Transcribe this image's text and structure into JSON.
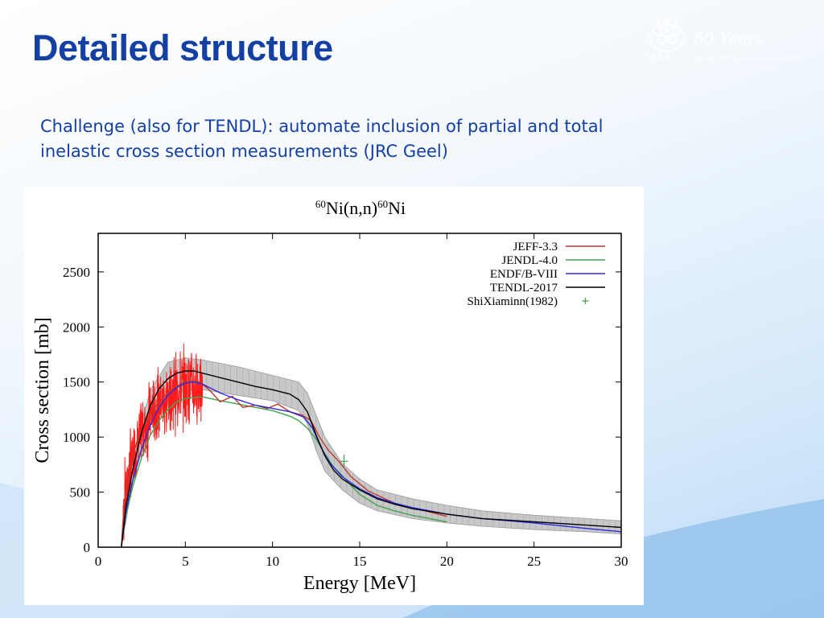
{
  "slide": {
    "title": "Detailed structure",
    "body": "Challenge (also for TENDL): automate inclusion of partial and total inelastic cross section measurements (JRC Geel)"
  },
  "logo": {
    "org": "IAEA",
    "years": "60 Years",
    "tagline": "Atoms for Peace and Development",
    "icon": "iaea-emblem-icon"
  },
  "colors": {
    "title": "#1540a3",
    "jeff": "#c0392b",
    "jendl": "#3fa34d",
    "endf": "#2a2ae0",
    "tendl": "#000000",
    "exfor": "#3fa34d",
    "band": "#b0b0b0"
  },
  "chart_data": {
    "type": "line",
    "title_parts": {
      "pre_sup": "60",
      "main": "Ni(n,n)",
      "mid_sup": "60",
      "post": "Ni"
    },
    "xlabel": "Energy [MeV]",
    "ylabel": "Cross section [mb]",
    "xlim": [
      0,
      30
    ],
    "ylim": [
      0,
      2850
    ],
    "xticks": [
      0,
      5,
      10,
      15,
      20,
      25,
      30
    ],
    "yticks": [
      0,
      500,
      1000,
      1500,
      2000,
      2500
    ],
    "grid": false,
    "legend_position": "top-right",
    "series": [
      {
        "name": "JEFF-3.3",
        "color": "#c0392b",
        "x": [
          1.33,
          1.5,
          1.8,
          2.2,
          2.7,
          3.2,
          3.8,
          4.3,
          4.8,
          5.3,
          5.8,
          6.3,
          7.0,
          7.7,
          8.3,
          9.0,
          9.7,
          10.3,
          11.0,
          11.7,
          12.2,
          12.7,
          13.2,
          13.8,
          14.5,
          15.5,
          17.0,
          18.5,
          20.0
        ],
        "y": [
          0,
          420,
          720,
          950,
          1130,
          1260,
          1370,
          1440,
          1490,
          1510,
          1500,
          1440,
          1320,
          1370,
          1270,
          1290,
          1260,
          1300,
          1230,
          1200,
          1150,
          1000,
          880,
          780,
          640,
          510,
          400,
          340,
          280
        ]
      },
      {
        "name": "JENDL-4.0",
        "color": "#3fa34d",
        "x": [
          1.33,
          1.6,
          2.0,
          2.5,
          3.0,
          3.5,
          4.0,
          4.5,
          5.0,
          5.5,
          6.0,
          7.0,
          8.0,
          9.0,
          10.0,
          11.0,
          11.5,
          12.0,
          12.5,
          13.0,
          13.5,
          14.0,
          14.5,
          15.0,
          16.0,
          17.0,
          18.0,
          19.0,
          20.0
        ],
        "y": [
          0,
          300,
          560,
          820,
          1020,
          1150,
          1250,
          1320,
          1350,
          1360,
          1365,
          1330,
          1300,
          1270,
          1240,
          1190,
          1150,
          1080,
          980,
          850,
          730,
          650,
          560,
          480,
          380,
          330,
          290,
          260,
          230
        ]
      },
      {
        "name": "ENDF/B-VIII",
        "color": "#2a2ae0",
        "x": [
          1.33,
          1.6,
          2.0,
          2.5,
          3.0,
          3.5,
          4.0,
          4.5,
          5.0,
          5.5,
          6.0,
          7.0,
          8.0,
          9.0,
          10.0,
          11.0,
          11.8,
          12.3,
          12.8,
          13.3,
          14.0,
          15.0,
          16.0,
          17.0,
          18.0,
          19.0,
          20.0,
          22.0,
          25.0,
          28.0,
          30.0
        ],
        "y": [
          0,
          330,
          620,
          900,
          1110,
          1270,
          1380,
          1450,
          1490,
          1500,
          1480,
          1400,
          1340,
          1290,
          1260,
          1230,
          1180,
          1080,
          900,
          760,
          640,
          530,
          450,
          400,
          360,
          330,
          300,
          260,
          220,
          170,
          140
        ]
      },
      {
        "name": "TENDL-2017",
        "color": "#000000",
        "x": [
          1.33,
          1.6,
          2.0,
          2.5,
          3.0,
          3.5,
          4.0,
          4.5,
          5.0,
          5.5,
          6.0,
          7.0,
          8.0,
          9.0,
          10.0,
          11.0,
          11.5,
          12.0,
          12.5,
          13.0,
          13.5,
          14.0,
          15.0,
          16.0,
          17.0,
          18.0,
          20.0,
          22.0,
          25.0,
          28.0,
          30.0
        ],
        "y": [
          0,
          380,
          720,
          1050,
          1290,
          1440,
          1530,
          1580,
          1600,
          1600,
          1580,
          1540,
          1500,
          1460,
          1430,
          1390,
          1340,
          1230,
          1020,
          830,
          700,
          620,
          520,
          440,
          390,
          350,
          300,
          260,
          230,
          200,
          180
        ]
      },
      {
        "name": "ShiXiaminn(1982)",
        "color": "#3fa34d",
        "kind": "points",
        "x": [
          14.1
        ],
        "y": [
          780
        ],
        "yerr": [
          60
        ]
      }
    ],
    "uncertainty_band": {
      "x": [
        1.33,
        2.0,
        3.0,
        4.0,
        5.0,
        6.0,
        8.0,
        10.0,
        11.5,
        12.0,
        12.5,
        13.0,
        14.0,
        15.0,
        16.0,
        18.0,
        20.0,
        22.0,
        25.0,
        28.0,
        30.0
      ],
      "lower": [
        0,
        600,
        1140,
        1370,
        1420,
        1430,
        1380,
        1330,
        1240,
        1120,
        880,
        690,
        520,
        400,
        330,
        260,
        220,
        190,
        160,
        140,
        120
      ],
      "upper": [
        0,
        840,
        1430,
        1680,
        1720,
        1700,
        1640,
        1560,
        1500,
        1400,
        1200,
        1000,
        760,
        620,
        520,
        440,
        380,
        330,
        290,
        260,
        240
      ]
    },
    "red_noisy": {
      "x_start": 1.4,
      "x_end": 6.0,
      "amplitude_max": 420
    }
  }
}
